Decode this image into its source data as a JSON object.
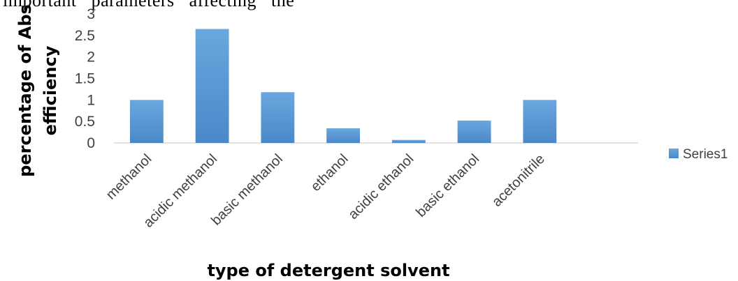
{
  "top_text": "important   parameters   affecting   the",
  "chart_data": {
    "type": "bar",
    "title": "",
    "categories": [
      "methanol",
      "acidic methanol",
      "basic methanol",
      "ethanol",
      "acidic ethanol",
      "basic ethanol",
      "acetonitrile",
      ""
    ],
    "series": [
      {
        "name": "Series1",
        "values": [
          1.0,
          2.65,
          1.18,
          0.34,
          0.07,
          0.52,
          1.0,
          null
        ]
      }
    ],
    "xlabel": "type of detergent solvent",
    "ylabel": [
      "percentage of Abs",
      "efficiency"
    ],
    "ylim": [
      0,
      3
    ],
    "yticks": [
      0,
      0.5,
      1,
      1.5,
      2,
      2.5,
      3
    ],
    "ytick_labels": [
      "0",
      "0.5",
      "1",
      "1.5",
      "2",
      "2.5",
      "3"
    ],
    "grid": false,
    "legend_position": "right",
    "bar_color": "#5b9bd5"
  }
}
